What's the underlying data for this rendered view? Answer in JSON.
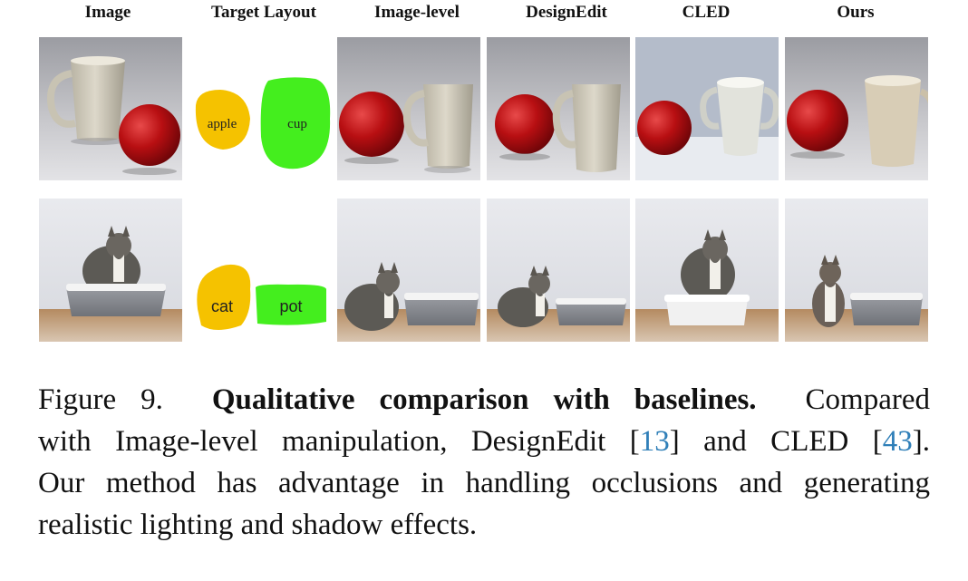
{
  "figure": {
    "columns": [
      "Image",
      "Target Layout",
      "Image-level",
      "DesignEdit",
      "CLED",
      "Ours"
    ],
    "rows": [
      {
        "row": "apple-cup",
        "layout_labels": [
          "apple",
          "cup"
        ],
        "layout_colors": {
          "apple": "#f5c200",
          "cup": "#44ee1e"
        }
      },
      {
        "row": "cat-pot",
        "layout_labels": [
          "cat",
          "pot"
        ],
        "layout_colors": {
          "cat": "#f5c200",
          "pot": "#44ee1e"
        }
      }
    ]
  },
  "caption": {
    "figure_label": "Figure 9.",
    "title": "Qualitative comparison with baselines.",
    "text_1": "Compared",
    "text_2": "with Image-level manipulation, DesignEdit [",
    "ref_1": "13",
    "text_3": "] and CLED [",
    "ref_2": "43",
    "text_4": "].",
    "text_5": "Our method has advantage in handling occlusions and generating",
    "text_6": "realistic lighting and shadow effects."
  }
}
